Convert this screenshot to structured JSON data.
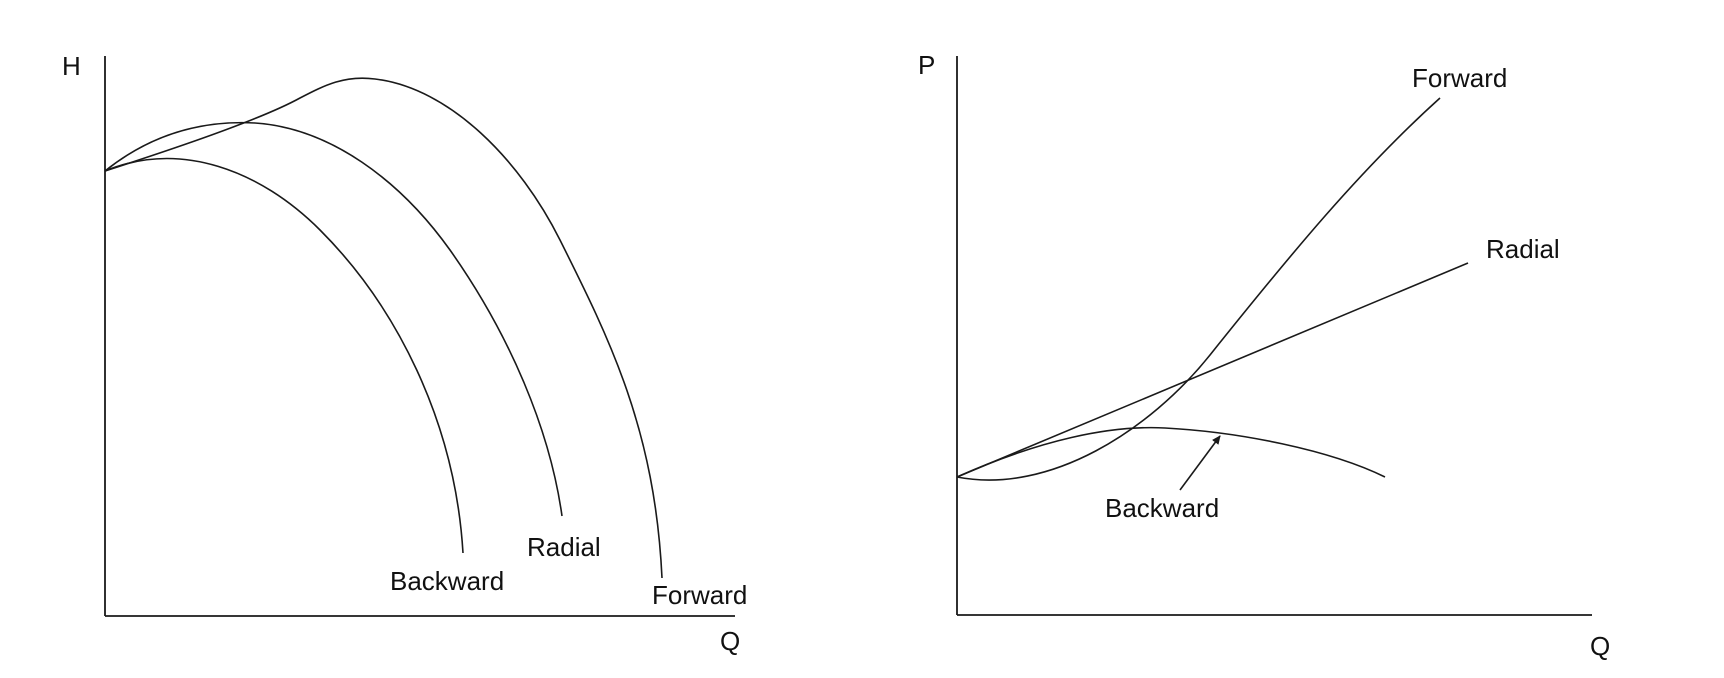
{
  "chart_data": [
    {
      "type": "line",
      "title": "",
      "xlabel": "Q",
      "ylabel": "H",
      "series": [
        {
          "name": "Backward"
        },
        {
          "name": "Radial"
        },
        {
          "name": "Forward"
        }
      ],
      "labels": {
        "backward": "Backward",
        "radial": "Radial",
        "forward": "Forward"
      }
    },
    {
      "type": "line",
      "title": "",
      "xlabel": "Q",
      "ylabel": "P",
      "series": [
        {
          "name": "Forward"
        },
        {
          "name": "Radial"
        },
        {
          "name": "Backward"
        }
      ],
      "labels": {
        "backward": "Backward",
        "radial": "Radial",
        "forward": "Forward"
      }
    }
  ]
}
